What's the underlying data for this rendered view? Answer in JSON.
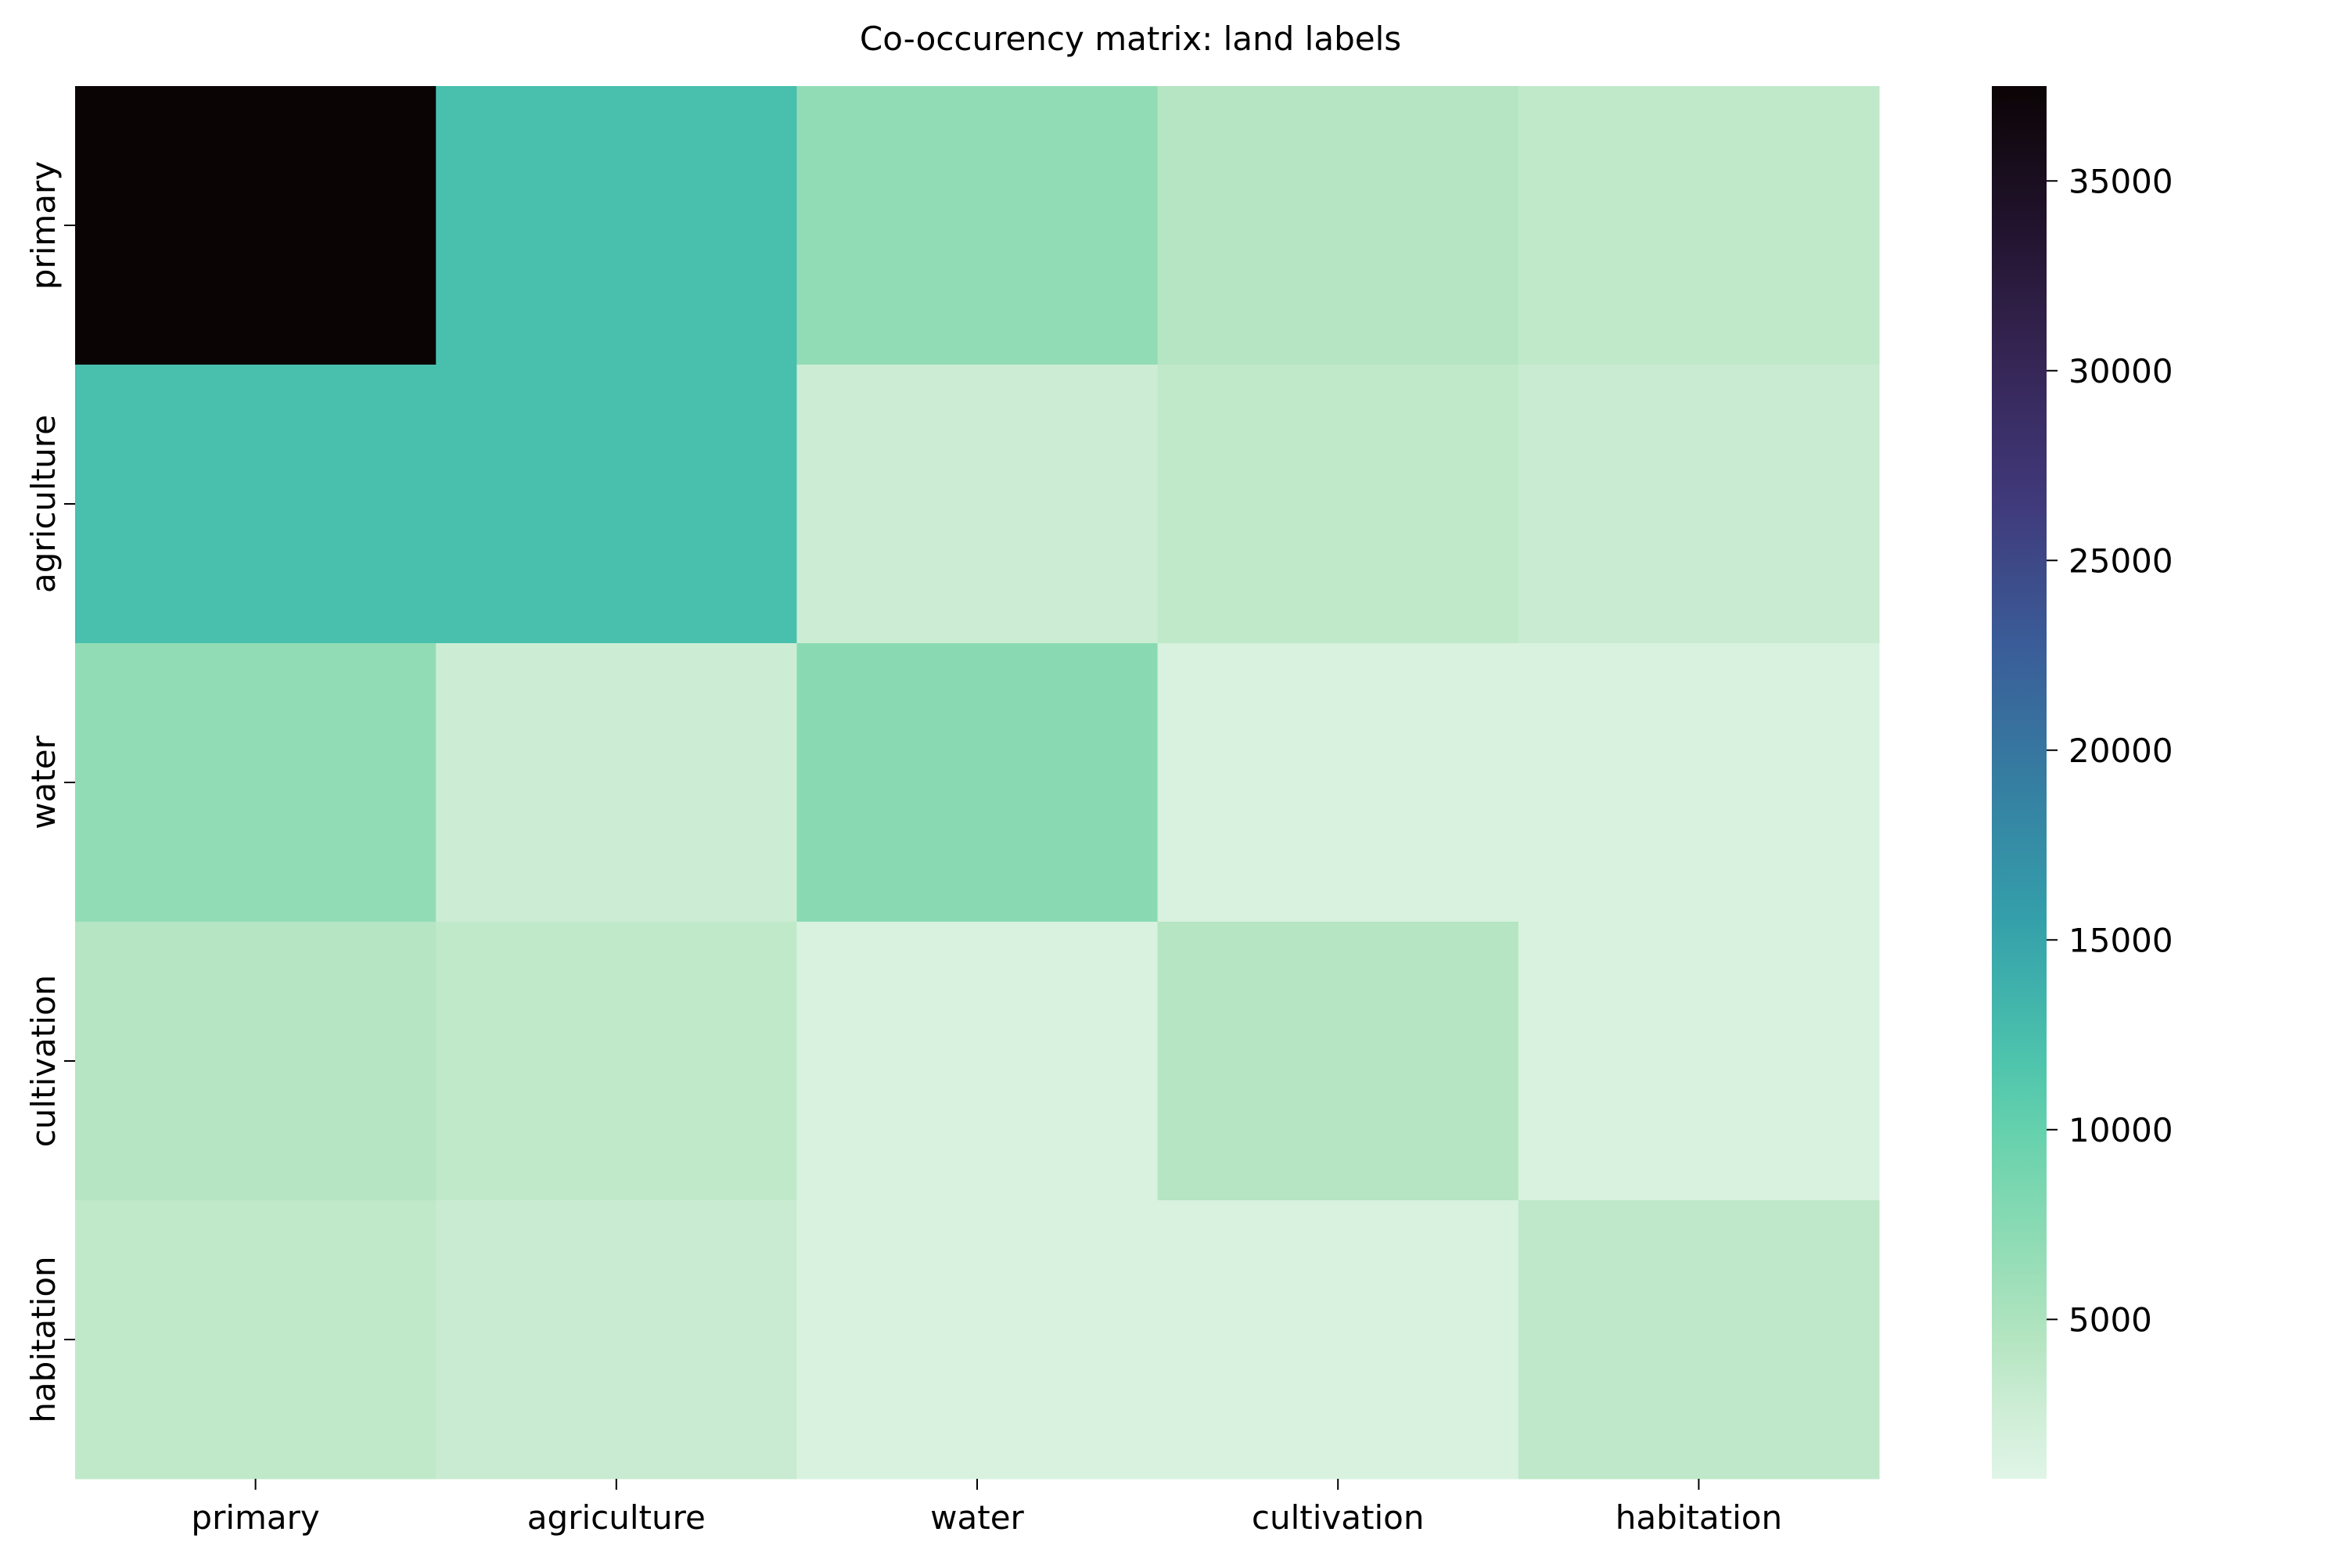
{
  "chart_data": {
    "type": "heatmap",
    "title": "Co-occurency matrix: land labels",
    "xlabel": "",
    "ylabel": "",
    "x_categories": [
      "primary",
      "agriculture",
      "water",
      "cultivation",
      "habitation"
    ],
    "y_categories": [
      "primary",
      "agriculture",
      "water",
      "cultivation",
      "habitation"
    ],
    "values": [
      [
        37500,
        12300,
        6800,
        4400,
        3600
      ],
      [
        12300,
        12300,
        2700,
        3600,
        3000
      ],
      [
        6800,
        2700,
        7400,
        1600,
        1600
      ],
      [
        4400,
        3600,
        1600,
        4400,
        1600
      ],
      [
        3600,
        3000,
        1600,
        1600,
        3700
      ]
    ],
    "colorbar": {
      "colormap": "mako_r",
      "min": 800,
      "max": 37500,
      "ticks": [
        5000,
        10000,
        15000,
        20000,
        25000,
        30000,
        35000
      ],
      "tick_labels": [
        "5000",
        "10000",
        "15000",
        "20000",
        "25000",
        "30000",
        "35000"
      ]
    },
    "grid": false,
    "legend": "colorbar-right"
  }
}
